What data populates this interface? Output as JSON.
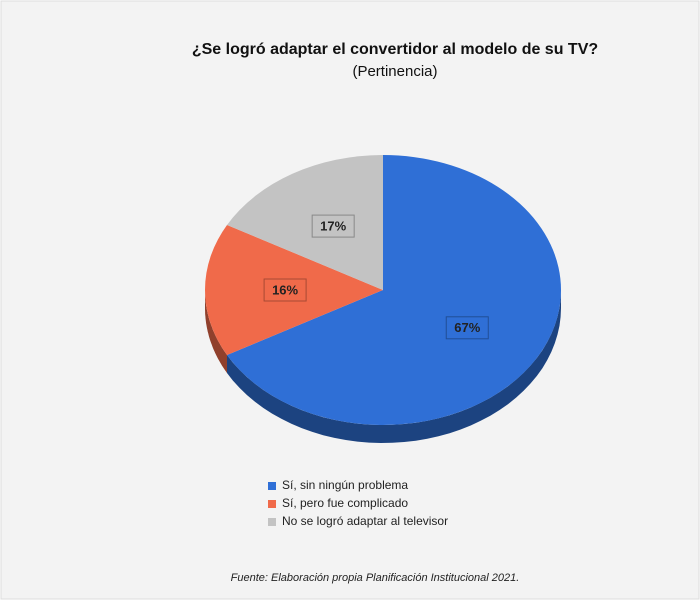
{
  "chart_data": {
    "type": "pie",
    "title": "¿Se logró adaptar el convertidor al modelo de su TV?",
    "subtitle": "(Pertinencia)",
    "categories": [
      "Sí, sin ningún problema",
      "Sí, pero fue complicado",
      "No se logró adaptar al televisor"
    ],
    "values": [
      67,
      16,
      17
    ],
    "value_labels": [
      "67%",
      "16%",
      "17%"
    ],
    "colors": [
      "#2f6fd6",
      "#f06a4a",
      "#c3c3c3"
    ],
    "source": "Fuente: Elaboración propia Planificación Institucional 2021."
  }
}
